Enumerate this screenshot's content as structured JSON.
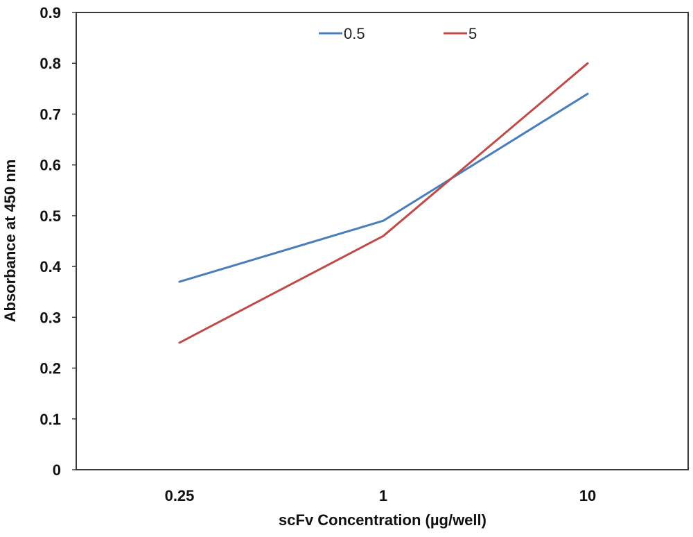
{
  "chart_data": {
    "type": "line",
    "categories": [
      "0.25",
      "1",
      "10"
    ],
    "series": [
      {
        "name": "0.5",
        "values": [
          0.37,
          0.49,
          0.74
        ],
        "color": "#4a7ebb"
      },
      {
        "name": "5",
        "values": [
          0.25,
          0.46,
          0.8
        ],
        "color": "#be4b48"
      }
    ],
    "xlabel": "scFv Concentration (µg/well)",
    "ylabel": "Absorbance at 450 nm",
    "ylim": [
      0,
      0.9
    ],
    "yticks": [
      "0",
      "0.1",
      "0.2",
      "0.3",
      "0.4",
      "0.5",
      "0.6",
      "0.7",
      "0.8",
      "0.9"
    ],
    "grid": false,
    "legend": "top"
  }
}
